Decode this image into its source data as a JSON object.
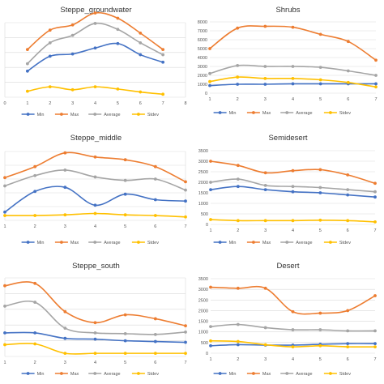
{
  "colors": {
    "Min": "#4472c4",
    "Max": "#ed7d31",
    "Average": "#a5a5a5",
    "Stdev": "#ffc000",
    "grid": "#d9d9d9"
  },
  "chart_data": [
    {
      "type": "line",
      "title": "Steppe_groundwater",
      "x": [
        1,
        2,
        3,
        4,
        5,
        6,
        7
      ],
      "xlim": [
        0,
        8
      ],
      "xticks": [
        "0",
        "1",
        "2",
        "3",
        "4",
        "5",
        "6",
        "7",
        "8"
      ],
      "ylim": [
        0,
        1
      ],
      "yticks": [],
      "grid": true,
      "legend": "bottom",
      "series": [
        {
          "name": "Min",
          "values": [
            0.35,
            0.55,
            0.58,
            0.66,
            0.72,
            0.57,
            0.47
          ]
        },
        {
          "name": "Max",
          "values": [
            0.64,
            0.9,
            0.97,
            1.13,
            1.06,
            0.86,
            0.64
          ]
        },
        {
          "name": "Average",
          "values": [
            0.45,
            0.73,
            0.83,
            0.99,
            0.91,
            0.73,
            0.57
          ]
        },
        {
          "name": "Stdev",
          "values": [
            0.08,
            0.14,
            0.1,
            0.14,
            0.11,
            0.07,
            0.04
          ]
        }
      ]
    },
    {
      "type": "line",
      "title": "Shrubs",
      "x": [
        1,
        2,
        3,
        4,
        5,
        6,
        7
      ],
      "xlim": [
        1,
        7
      ],
      "xticks": [
        "1",
        "2",
        "3",
        "4",
        "5",
        "6",
        "7"
      ],
      "ylim": [
        0,
        8000
      ],
      "yticks": [
        "0",
        "1000",
        "2000",
        "3000",
        "4000",
        "5000",
        "6000",
        "7000",
        "8000"
      ],
      "grid": true,
      "legend": "bottom",
      "series": [
        {
          "name": "Min",
          "values": [
            850,
            1000,
            1000,
            1050,
            1050,
            1050,
            1050
          ]
        },
        {
          "name": "Max",
          "values": [
            5000,
            7300,
            7500,
            7400,
            6600,
            5800,
            3700
          ]
        },
        {
          "name": "Average",
          "values": [
            2200,
            3100,
            3000,
            3000,
            2900,
            2500,
            2000
          ]
        },
        {
          "name": "Stdev",
          "values": [
            1300,
            1800,
            1650,
            1650,
            1500,
            1200,
            700
          ]
        }
      ]
    },
    {
      "type": "line",
      "title": "Steppe_middle",
      "x": [
        1,
        2,
        3,
        4,
        5,
        6,
        7
      ],
      "xlim": [
        1,
        7
      ],
      "xticks": [
        "1",
        "2",
        "3",
        "4",
        "5",
        "6",
        "7"
      ],
      "ylim": [
        0,
        1
      ],
      "yticks": [],
      "grid": true,
      "legend": "bottom",
      "series": [
        {
          "name": "Min",
          "values": [
            0.12,
            0.42,
            0.48,
            0.22,
            0.38,
            0.3,
            0.28
          ]
        },
        {
          "name": "Max",
          "values": [
            0.62,
            0.78,
            0.98,
            0.92,
            0.88,
            0.78,
            0.56
          ]
        },
        {
          "name": "Average",
          "values": [
            0.5,
            0.65,
            0.73,
            0.63,
            0.58,
            0.6,
            0.44
          ]
        },
        {
          "name": "Stdev",
          "values": [
            0.07,
            0.07,
            0.08,
            0.1,
            0.08,
            0.07,
            0.05
          ]
        }
      ]
    },
    {
      "type": "line",
      "title": "Semidesert",
      "x": [
        1,
        2,
        3,
        4,
        5,
        6,
        7
      ],
      "xlim": [
        1,
        7
      ],
      "xticks": [
        "1",
        "2",
        "3",
        "4",
        "5",
        "6",
        "7"
      ],
      "ylim": [
        0,
        3500
      ],
      "yticks": [
        "0",
        "500",
        "1000",
        "1500",
        "2000",
        "2500",
        "3000",
        "3500"
      ],
      "grid": true,
      "legend": "bottom",
      "series": [
        {
          "name": "Min",
          "values": [
            1650,
            1800,
            1650,
            1550,
            1500,
            1400,
            1300
          ]
        },
        {
          "name": "Max",
          "values": [
            3000,
            2800,
            2450,
            2550,
            2600,
            2350,
            1950
          ]
        },
        {
          "name": "Average",
          "values": [
            2000,
            2150,
            1850,
            1800,
            1750,
            1650,
            1550
          ]
        },
        {
          "name": "Stdev",
          "values": [
            230,
            180,
            180,
            180,
            200,
            180,
            120
          ]
        }
      ]
    },
    {
      "type": "line",
      "title": "Steppe_south",
      "x": [
        1,
        2,
        3,
        4,
        5,
        6,
        7
      ],
      "xlim": [
        1,
        7
      ],
      "xticks": [
        "1",
        "2",
        "3",
        "4",
        "5",
        "6",
        "7"
      ],
      "ylim": [
        0,
        1
      ],
      "yticks": [],
      "grid": true,
      "legend": "bottom",
      "series": [
        {
          "name": "Min",
          "values": [
            0.3,
            0.3,
            0.23,
            0.22,
            0.2,
            0.19,
            0.18
          ]
        },
        {
          "name": "Max",
          "values": [
            0.9,
            0.93,
            0.57,
            0.43,
            0.53,
            0.48,
            0.39
          ]
        },
        {
          "name": "Average",
          "values": [
            0.64,
            0.69,
            0.36,
            0.3,
            0.29,
            0.28,
            0.31
          ]
        },
        {
          "name": "Stdev",
          "values": [
            0.15,
            0.16,
            0.04,
            0.04,
            0.04,
            0.04,
            0.04
          ]
        }
      ]
    },
    {
      "type": "line",
      "title": "Desert",
      "x": [
        1,
        2,
        3,
        4,
        5,
        6,
        7
      ],
      "xlim": [
        1,
        7
      ],
      "xticks": [
        "1",
        "2",
        "3",
        "4",
        "5",
        "6",
        "7"
      ],
      "ylim": [
        0,
        3500
      ],
      "yticks": [
        "0",
        "500",
        "1000",
        "1500",
        "2000",
        "2500",
        "3000",
        "3500"
      ],
      "grid": true,
      "legend": "bottom",
      "series": [
        {
          "name": "Min",
          "values": [
            350,
            400,
            380,
            380,
            420,
            450,
            450
          ]
        },
        {
          "name": "Max",
          "values": [
            3100,
            3050,
            3050,
            1950,
            1880,
            2000,
            2700
          ]
        },
        {
          "name": "Average",
          "values": [
            1250,
            1350,
            1200,
            1100,
            1100,
            1050,
            1050
          ]
        },
        {
          "name": "Stdev",
          "values": [
            580,
            550,
            400,
            300,
            350,
            300,
            300
          ]
        }
      ]
    }
  ]
}
